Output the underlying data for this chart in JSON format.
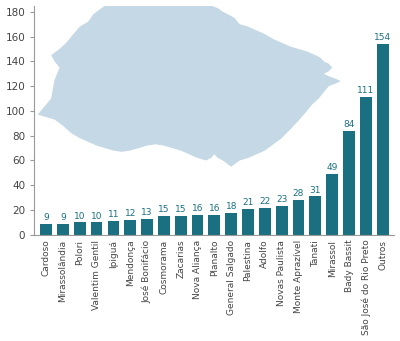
{
  "categories": [
    "Cardoso",
    "Mirassolândia",
    "Polori",
    "Valentim Gentil",
    "Ipiguá",
    "Mendonça",
    "José Bonifácio",
    "Cosmorama",
    "Zacarias",
    "Nova Aliança",
    "Planalto",
    "General Salgado",
    "Palestina",
    "Adolfo",
    "Novas Paulista",
    "Monte Aprazível",
    "Tanati",
    "Mirassol",
    "Bady Bassit",
    "São José do Rio Preto",
    "Outros"
  ],
  "values": [
    9,
    9,
    10,
    10,
    11,
    12,
    13,
    15,
    15,
    16,
    16,
    18,
    21,
    22,
    23,
    28,
    31,
    49,
    84,
    111,
    154
  ],
  "bar_color": "#1a7080",
  "value_color": "#1a7080",
  "bg_color": "#ffffff",
  "map_color": "#c5d8e5",
  "yticks": [
    0,
    20,
    40,
    60,
    80,
    100,
    120,
    140,
    160,
    180
  ],
  "ylim": [
    0,
    185
  ],
  "value_fontsize": 6.5,
  "xlabel_fontsize": 6.5,
  "ylabel_fontsize": 7.5
}
